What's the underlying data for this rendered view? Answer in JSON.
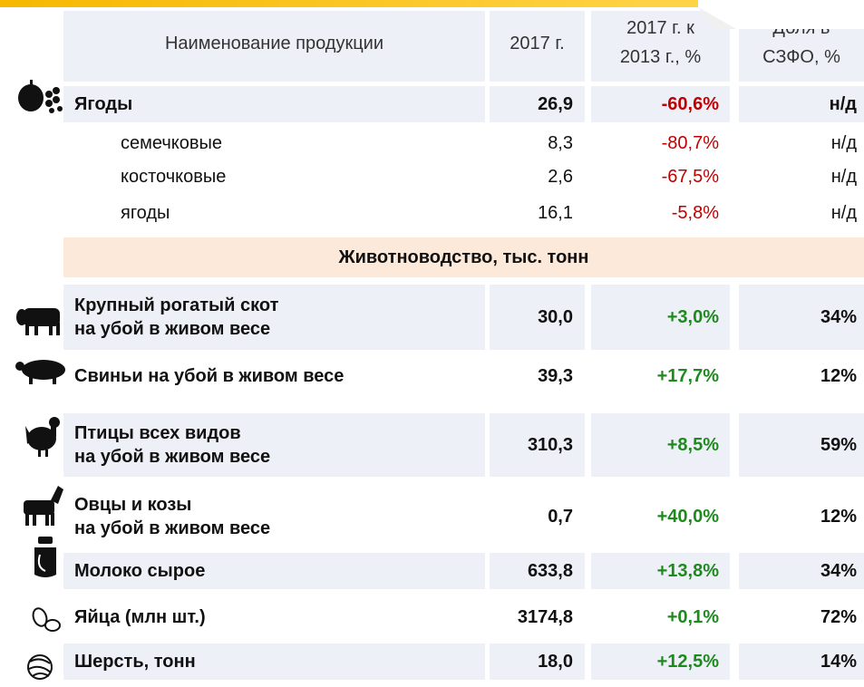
{
  "header": {
    "columns": [
      "Наименование продукции",
      "2017 г.",
      [
        "2017 г. к",
        "2013 г., %"
      ],
      [
        "Доля в",
        "СЗФО, %"
      ]
    ]
  },
  "fruit": {
    "total": {
      "name": [
        "Ягоды"
      ],
      "v2017": "26,9",
      "change": "-60,6%",
      "share": "н/д"
    },
    "items": [
      {
        "name": [
          "семечковые"
        ],
        "v2017": "8,3",
        "change": "-80,7%",
        "share": "н/д"
      },
      {
        "name": [
          "косточковые"
        ],
        "v2017": "2,6",
        "change": "-67,5%",
        "share": "н/д"
      },
      {
        "name": [
          "ягоды"
        ],
        "v2017": "16,1",
        "change": "-5,8%",
        "share": "н/д"
      }
    ]
  },
  "livestock": {
    "title": "Животноводство, тыс. тонн",
    "rows": [
      {
        "name": [
          "Крупный рогатый скот",
          "на убой в живом весе"
        ],
        "v2017": "30,0",
        "change": "+3,0%",
        "share": "34%"
      },
      {
        "name": [
          "Свиньи на убой в живом весе"
        ],
        "v2017": "39,3",
        "change": "+17,7%",
        "share": "12%"
      },
      {
        "name": [
          "Птицы всех видов",
          "на убой в живом весе"
        ],
        "v2017": "310,3",
        "change": "+8,5%",
        "share": "59%"
      },
      {
        "name": [
          "Овцы и козы",
          "на убой в живом весе"
        ],
        "v2017": "0,7",
        "change": "+40,0%",
        "share": "12%"
      },
      {
        "name": [
          "Молоко сырое"
        ],
        "v2017": "633,8",
        "change": "+13,8%",
        "share": "34%"
      },
      {
        "name": [
          "Яйца (млн шт.)"
        ],
        "v2017": "3174,8",
        "change": "+0,1%",
        "share": "72%"
      },
      {
        "name": [
          "Шерсть, тонн"
        ],
        "v2017": "18,0",
        "change": "+12,5%",
        "share": "14%"
      }
    ]
  }
}
